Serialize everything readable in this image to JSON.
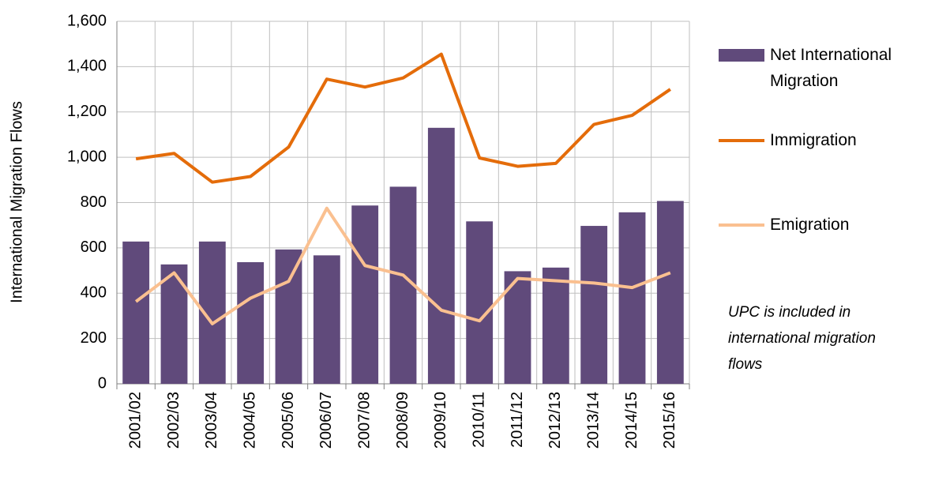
{
  "chart_data": {
    "type": "bar",
    "y_label": "International Migration Flows",
    "categories": [
      "2001/02",
      "2002/03",
      "2003/04",
      "2004/05",
      "2005/06",
      "2006/07",
      "2007/08",
      "2008/09",
      "2009/10",
      "2010/11",
      "2011/12",
      "2012/13",
      "2013/14",
      "2014/15",
      "2015/16"
    ],
    "series": [
      {
        "name": "Net International Migration",
        "type": "bar",
        "color": "#604a7b",
        "values": [
          628,
          527,
          628,
          537,
          593,
          567,
          787,
          870,
          1130,
          717,
          497,
          513,
          697,
          757,
          807
        ]
      },
      {
        "name": "Immigration",
        "type": "line",
        "color": "#e46c0a",
        "values": [
          993,
          1017,
          890,
          915,
          1045,
          1345,
          1310,
          1350,
          1455,
          997,
          960,
          973,
          1145,
          1185,
          1300
        ]
      },
      {
        "name": "Emigration",
        "type": "line",
        "color": "#fac090",
        "values": [
          363,
          490,
          265,
          378,
          452,
          775,
          522,
          480,
          325,
          278,
          465,
          455,
          445,
          425,
          490
        ]
      }
    ],
    "ylim": [
      0,
      1600
    ],
    "yticks": [
      0,
      200,
      400,
      600,
      800,
      {
        "value": 1000,
        "label": "1,000"
      },
      {
        "value": 1200,
        "label": "1,200"
      },
      {
        "value": 1400,
        "label": "1,400"
      },
      {
        "value": 1600,
        "label": "1,600"
      }
    ],
    "grid": true,
    "legend": "right",
    "annotation": "UPC is included in international migration flows"
  }
}
